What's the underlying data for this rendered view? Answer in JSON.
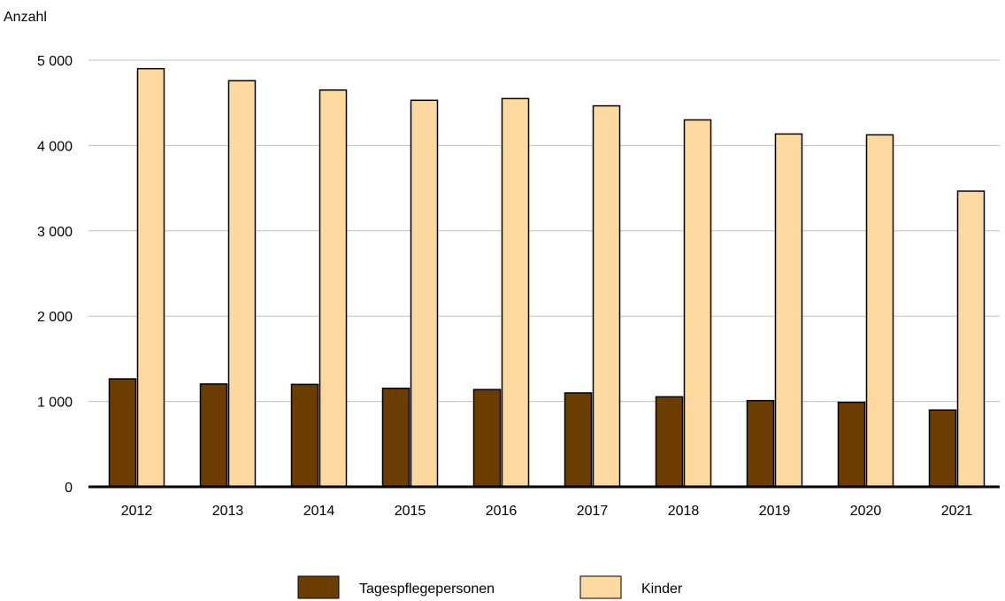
{
  "chart_data": {
    "type": "bar",
    "ylabel": "Anzahl",
    "xlabel": "",
    "categories": [
      "2012",
      "2013",
      "2014",
      "2015",
      "2016",
      "2017",
      "2018",
      "2019",
      "2020",
      "2021"
    ],
    "yticks": [
      0,
      1000,
      2000,
      3000,
      4000,
      5000
    ],
    "ytick_labels": [
      "0",
      "1 000",
      "2 000",
      "3 000",
      "4 000",
      "5 000"
    ],
    "ylim": [
      0,
      5000
    ],
    "grid": true,
    "legend_position": "bottom",
    "series": [
      {
        "name": "Tagespflegepersonen",
        "color": "#6b3d00",
        "values": [
          1265,
          1205,
          1200,
          1155,
          1140,
          1100,
          1055,
          1010,
          990,
          900
        ]
      },
      {
        "name": "Kinder",
        "color": "#fdd9a0",
        "values": [
          4900,
          4760,
          4650,
          4530,
          4550,
          4465,
          4300,
          4135,
          4125,
          3465
        ]
      }
    ]
  }
}
